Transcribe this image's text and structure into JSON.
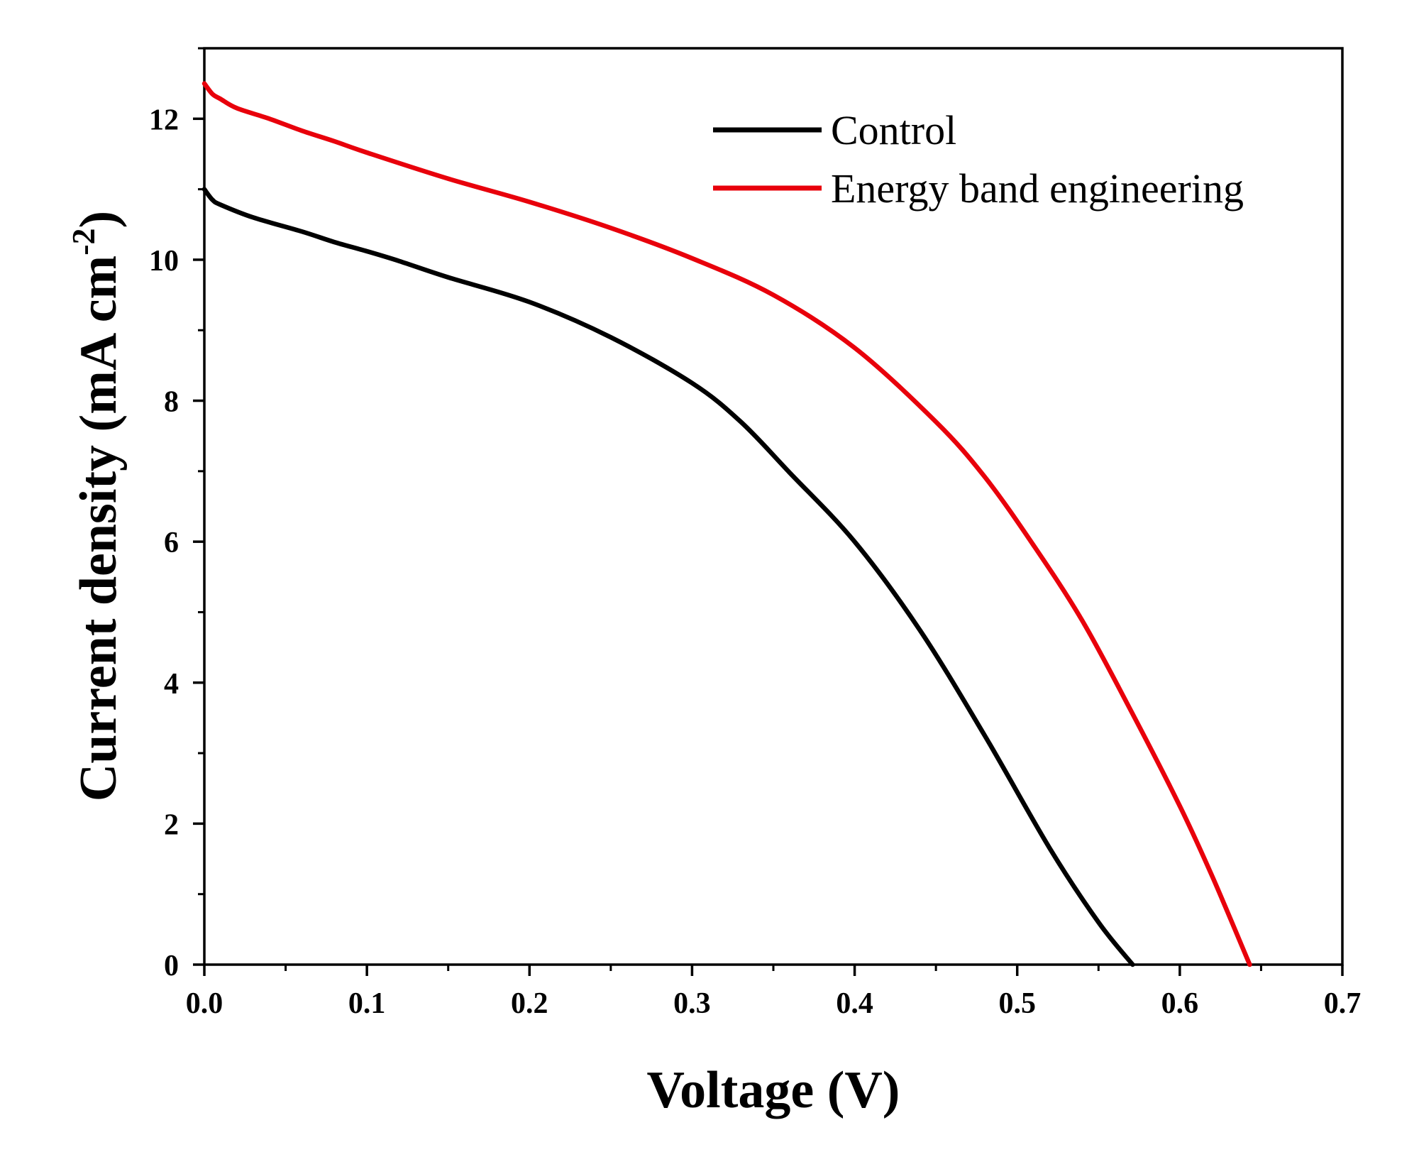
{
  "chart_data": {
    "type": "line",
    "title": "",
    "xlabel": "Voltage (V)",
    "ylabel": "Current density (mA cm",
    "ylabel_superscript": "-2",
    "ylabel_suffix": ")",
    "xlim": [
      0.0,
      0.7
    ],
    "ylim": [
      0,
      13
    ],
    "x_ticks": [
      0.0,
      0.1,
      0.2,
      0.3,
      0.4,
      0.5,
      0.6,
      0.7
    ],
    "x_tick_labels": [
      "0.0",
      "0.1",
      "0.2",
      "0.3",
      "0.4",
      "0.5",
      "0.6",
      "0.7"
    ],
    "y_ticks": [
      0,
      2,
      4,
      6,
      8,
      10,
      12
    ],
    "y_tick_labels": [
      "0",
      "2",
      "4",
      "6",
      "8",
      "10",
      "12"
    ],
    "grid": false,
    "legend_position": "top-right",
    "series": [
      {
        "name": "Control",
        "color": "#000000",
        "x": [
          0.0,
          0.005,
          0.01,
          0.03,
          0.06,
          0.08,
          0.1,
          0.12,
          0.15,
          0.2,
          0.25,
          0.3,
          0.33,
          0.36,
          0.4,
          0.44,
          0.48,
          0.52,
          0.55,
          0.571
        ],
        "y": [
          11.0,
          10.85,
          10.78,
          10.6,
          10.4,
          10.25,
          10.12,
          9.98,
          9.75,
          9.4,
          8.9,
          8.25,
          7.7,
          6.98,
          6.0,
          4.75,
          3.25,
          1.65,
          0.6,
          0.0
        ]
      },
      {
        "name": "Energy band engineering",
        "color": "#e8000b",
        "x": [
          0.0,
          0.005,
          0.01,
          0.02,
          0.04,
          0.06,
          0.08,
          0.1,
          0.15,
          0.2,
          0.25,
          0.3,
          0.35,
          0.4,
          0.45,
          0.48,
          0.51,
          0.54,
          0.57,
          0.6,
          0.62,
          0.643
        ],
        "y": [
          12.5,
          12.35,
          12.28,
          12.15,
          12.0,
          11.83,
          11.68,
          11.52,
          11.15,
          10.82,
          10.45,
          10.02,
          9.5,
          8.75,
          7.7,
          6.92,
          5.95,
          4.88,
          3.6,
          2.25,
          1.25,
          0.0
        ]
      }
    ]
  }
}
